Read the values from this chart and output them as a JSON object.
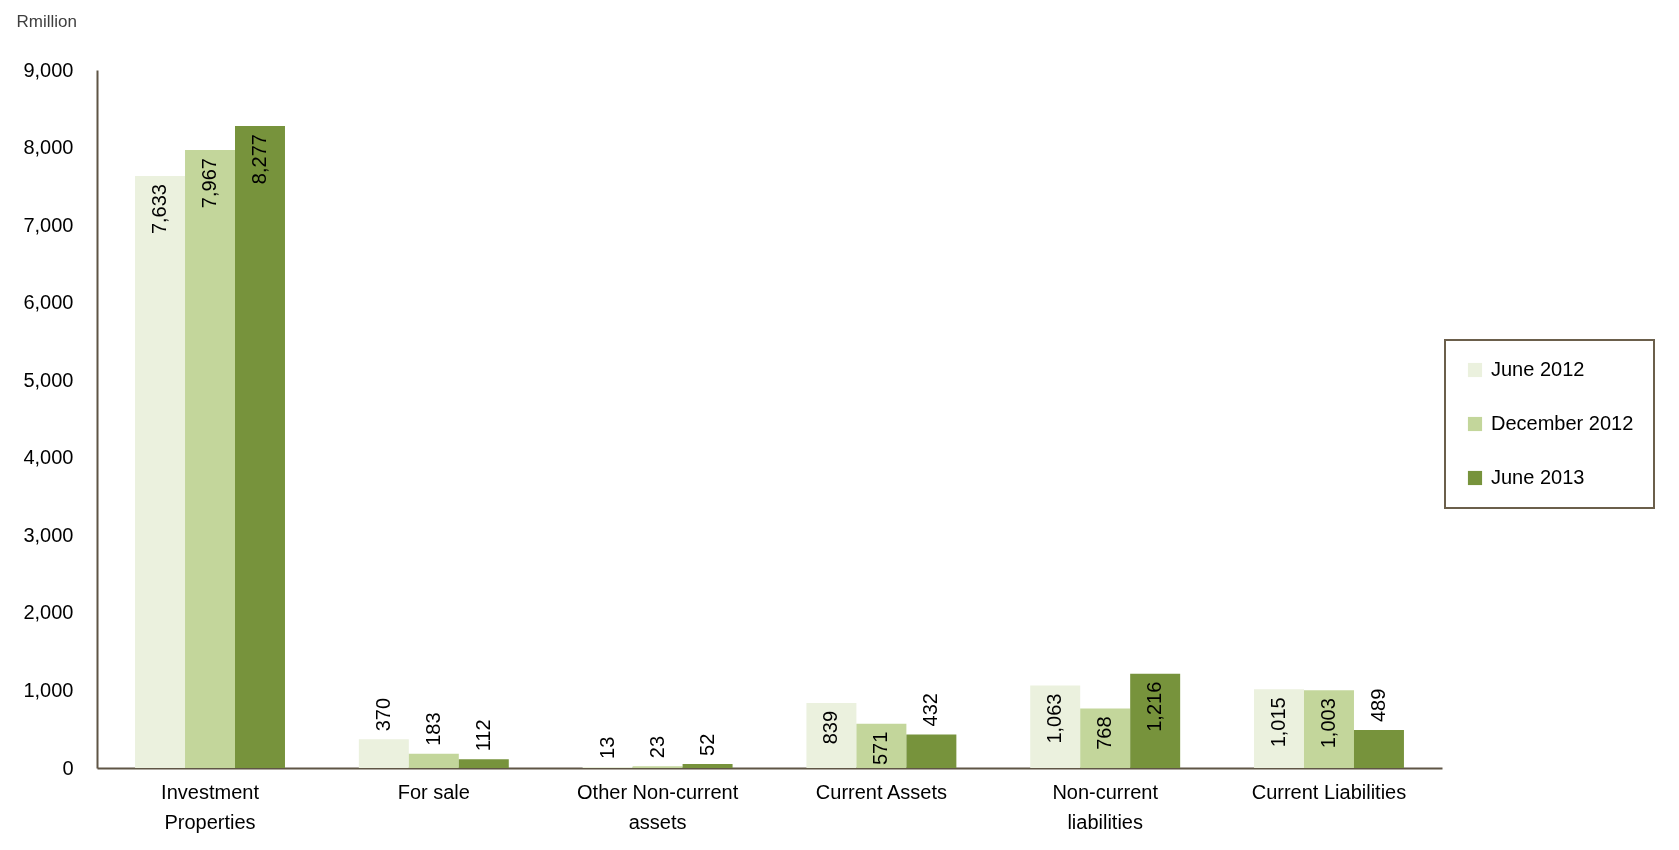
{
  "chart_data": {
    "type": "bar",
    "ylabel": "Rmillion",
    "categories": [
      "Investment Properties",
      "For sale",
      "Other Non-current assets",
      "Current Assets",
      "Non-current liabilities",
      "Current Liabilities"
    ],
    "series": [
      {
        "name": "June 2012",
        "color": "#ebf1de",
        "values": [
          7633,
          370,
          13,
          839,
          1063,
          1015
        ],
        "value_labels": [
          "7,633",
          "370",
          "13",
          "839",
          "1,063",
          "1,015"
        ]
      },
      {
        "name": "December 2012",
        "color": "#c3d69b",
        "values": [
          7967,
          183,
          23,
          571,
          768,
          1003
        ],
        "value_labels": [
          "7,967",
          "183",
          "23",
          "571",
          "768",
          "1,003"
        ]
      },
      {
        "name": "June 2013",
        "color": "#77933c",
        "values": [
          8277,
          112,
          52,
          432,
          1216,
          489
        ],
        "value_labels": [
          "8,277",
          "112",
          "52",
          "432",
          "1,216",
          "489"
        ]
      }
    ],
    "ylim": [
      0,
      9000
    ],
    "yticks": [
      0,
      {
        "value": 1000,
        "label": "1,000"
      },
      {
        "value": 2000,
        "label": "2,000"
      },
      {
        "value": 3000,
        "label": "3,000"
      },
      {
        "value": 4000,
        "label": "4,000"
      },
      {
        "value": 5000,
        "label": "5,000"
      },
      {
        "value": 6000,
        "label": "6,000"
      },
      {
        "value": 7000,
        "label": "7,000"
      },
      {
        "value": 8000,
        "label": "8,000"
      },
      {
        "value": 9000,
        "label": "9,000"
      }
    ],
    "legend": "right"
  }
}
